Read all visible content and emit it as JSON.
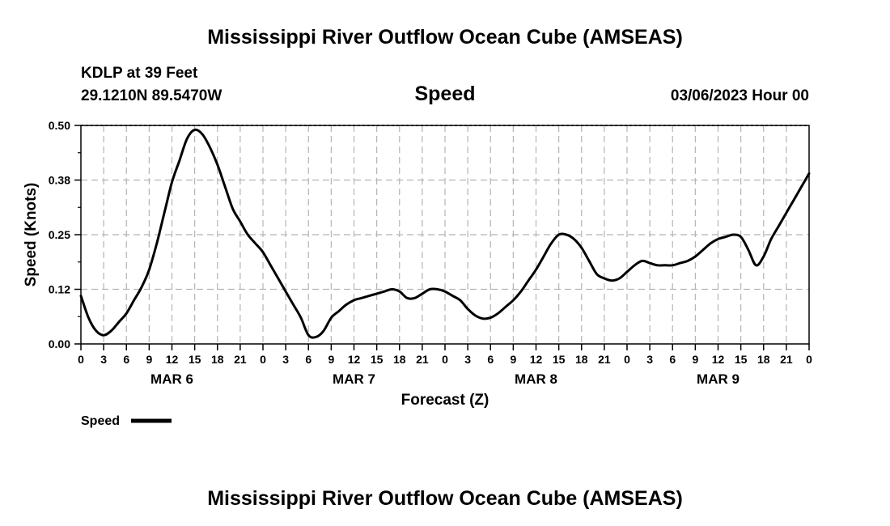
{
  "chart_data": {
    "type": "line",
    "title": "Mississippi River Outflow Ocean Cube (AMSEAS)",
    "footer_title": "Mississippi River Outflow Ocean Cube (AMSEAS)",
    "station": "KDLP at 39 Feet",
    "location": "29.1210N  89.5470W",
    "subtitle": "Speed",
    "datetime": "03/06/2023 Hour 00",
    "xlabel": "Forecast (Z)",
    "ylabel": "Speed (Knots)",
    "ylim": [
      0,
      0.5
    ],
    "xlim": [
      0,
      96
    ],
    "y_ticks": [
      0,
      0.125,
      0.25,
      0.375,
      0.5
    ],
    "y_tick_labels": [
      "0.00",
      "0.12",
      "0.25",
      "0.38",
      "0.50"
    ],
    "x_ticks": [
      0,
      3,
      6,
      9,
      12,
      15,
      18,
      21,
      24,
      27,
      30,
      33,
      36,
      39,
      42,
      45,
      48,
      51,
      54,
      57,
      60,
      63,
      66,
      69,
      72,
      75,
      78,
      81,
      84,
      87,
      90,
      93,
      96
    ],
    "x_tick_labels": [
      "0",
      "3",
      "6",
      "9",
      "12",
      "15",
      "18",
      "21",
      "0",
      "3",
      "6",
      "9",
      "12",
      "15",
      "18",
      "21",
      "0",
      "3",
      "6",
      "9",
      "12",
      "15",
      "18",
      "21",
      "0",
      "3",
      "6",
      "9",
      "12",
      "15",
      "18",
      "21",
      "0"
    ],
    "day_labels": [
      {
        "label": "MAR 6",
        "hour": 12
      },
      {
        "label": "MAR 7",
        "hour": 36
      },
      {
        "label": "MAR 8",
        "hour": 60
      },
      {
        "label": "MAR 9",
        "hour": 84
      }
    ],
    "grid": true,
    "legend": [
      {
        "name": "Speed",
        "placement": "bottom-left"
      }
    ],
    "series": [
      {
        "name": "Speed",
        "color": "#000000",
        "x": [
          0,
          1,
          2,
          3,
          4,
          5,
          6,
          7,
          8,
          9,
          10,
          11,
          12,
          13,
          14,
          15,
          16,
          17,
          18,
          19,
          20,
          21,
          22,
          23,
          24,
          25,
          26,
          27,
          28,
          29,
          30,
          31,
          32,
          33,
          34,
          35,
          36,
          37,
          38,
          39,
          40,
          41,
          42,
          43,
          44,
          45,
          46,
          47,
          48,
          49,
          50,
          51,
          52,
          53,
          54,
          55,
          56,
          57,
          58,
          59,
          60,
          61,
          62,
          63,
          64,
          65,
          66,
          67,
          68,
          69,
          70,
          71,
          72,
          73,
          74,
          75,
          76,
          77,
          78,
          79,
          80,
          81,
          82,
          83,
          84,
          85,
          86,
          87,
          88,
          89,
          90,
          91,
          92,
          93,
          94,
          95,
          96
        ],
        "values": [
          0.11,
          0.06,
          0.03,
          0.02,
          0.03,
          0.05,
          0.07,
          0.1,
          0.13,
          0.17,
          0.23,
          0.3,
          0.37,
          0.42,
          0.47,
          0.49,
          0.48,
          0.45,
          0.41,
          0.36,
          0.31,
          0.28,
          0.25,
          0.23,
          0.21,
          0.18,
          0.15,
          0.12,
          0.09,
          0.06,
          0.02,
          0.016,
          0.03,
          0.06,
          0.075,
          0.09,
          0.1,
          0.105,
          0.11,
          0.115,
          0.12,
          0.125,
          0.12,
          0.105,
          0.105,
          0.115,
          0.125,
          0.125,
          0.12,
          0.11,
          0.1,
          0.08,
          0.065,
          0.058,
          0.06,
          0.07,
          0.085,
          0.1,
          0.12,
          0.145,
          0.17,
          0.2,
          0.23,
          0.25,
          0.25,
          0.24,
          0.22,
          0.19,
          0.16,
          0.15,
          0.145,
          0.15,
          0.165,
          0.18,
          0.19,
          0.185,
          0.18,
          0.18,
          0.18,
          0.185,
          0.19,
          0.2,
          0.215,
          0.23,
          0.24,
          0.245,
          0.25,
          0.245,
          0.215,
          0.18,
          0.2,
          0.24,
          0.27,
          0.3,
          0.33,
          0.36,
          0.39
        ]
      }
    ]
  }
}
